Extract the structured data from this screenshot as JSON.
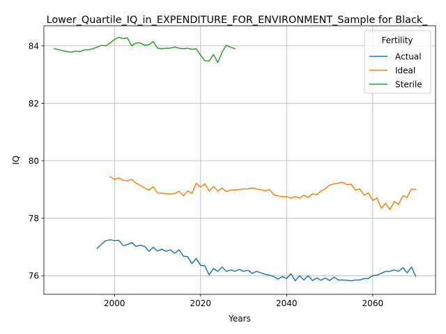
{
  "chart_data": {
    "type": "line",
    "title": "Lower_Quartile_IQ_in_EXPENDITURE_FOR_ENVIRONMENT_Sample for Black_",
    "xlabel": "Years",
    "ylabel": "IQ",
    "xlim": [
      1983.6,
      2074.6
    ],
    "ylim": [
      75.35,
      84.7
    ],
    "xticks": [
      2000,
      2020,
      2040,
      2060
    ],
    "yticks": [
      76,
      78,
      80,
      82,
      84
    ],
    "grid": true,
    "legend": {
      "title": "Fertility",
      "position": "top-right"
    },
    "series": [
      {
        "name": "Actual",
        "color": "#1f77b4",
        "x": [
          1996,
          1997,
          1998,
          1999,
          2000,
          2001,
          2002,
          2003,
          2004,
          2005,
          2006,
          2007,
          2008,
          2009,
          2010,
          2011,
          2012,
          2013,
          2014,
          2015,
          2016,
          2017,
          2018,
          2019,
          2020,
          2021,
          2022,
          2023,
          2024,
          2025,
          2026,
          2027,
          2028,
          2029,
          2030,
          2031,
          2032,
          2033,
          2034,
          2035,
          2036,
          2037,
          2038,
          2039,
          2040,
          2041,
          2042,
          2043,
          2044,
          2045,
          2046,
          2047,
          2048,
          2049,
          2050,
          2051,
          2052,
          2053,
          2054,
          2055,
          2056,
          2057,
          2058,
          2059,
          2060,
          2061,
          2062,
          2063,
          2064,
          2065,
          2066,
          2067,
          2068,
          2069,
          2070
        ],
        "y": [
          76.95,
          77.1,
          77.22,
          77.25,
          77.22,
          77.23,
          77.05,
          77.08,
          77.15,
          77.02,
          77.06,
          77.02,
          76.85,
          76.99,
          76.86,
          76.92,
          76.85,
          76.9,
          76.78,
          76.9,
          76.68,
          76.66,
          76.42,
          76.6,
          76.36,
          76.34,
          76.03,
          76.25,
          76.15,
          76.3,
          76.15,
          76.2,
          76.15,
          76.22,
          76.15,
          76.19,
          76.08,
          76.15,
          76.1,
          76.05,
          76.02,
          75.97,
          75.88,
          75.97,
          75.9,
          76.07,
          75.82,
          76.0,
          75.85,
          76.0,
          75.83,
          75.92,
          75.84,
          75.92,
          75.83,
          75.95,
          75.85,
          75.85,
          75.84,
          75.82,
          75.85,
          75.85,
          75.9,
          75.9,
          76.0,
          76.02,
          76.08,
          76.15,
          76.15,
          76.2,
          76.15,
          76.28,
          76.1,
          76.3,
          75.98
        ]
      },
      {
        "name": "Ideal",
        "color": "#ff7f0e",
        "x": [
          1999,
          2000,
          2001,
          2002,
          2003,
          2004,
          2005,
          2006,
          2007,
          2008,
          2009,
          2010,
          2011,
          2012,
          2013,
          2014,
          2015,
          2016,
          2017,
          2018,
          2019,
          2020,
          2021,
          2022,
          2023,
          2024,
          2025,
          2026,
          2027,
          2028,
          2029,
          2030,
          2031,
          2032,
          2033,
          2034,
          2035,
          2036,
          2037,
          2038,
          2039,
          2040,
          2041,
          2042,
          2043,
          2044,
          2045,
          2046,
          2047,
          2048,
          2049,
          2050,
          2051,
          2052,
          2053,
          2054,
          2055,
          2056,
          2057,
          2058,
          2059,
          2060,
          2061,
          2062,
          2063,
          2064,
          2065,
          2066,
          2067,
          2068,
          2069,
          2070
        ],
        "y": [
          79.45,
          79.35,
          79.4,
          79.32,
          79.3,
          79.35,
          79.22,
          79.15,
          79.05,
          78.98,
          79.1,
          78.88,
          78.87,
          78.85,
          78.84,
          78.86,
          78.94,
          78.78,
          78.95,
          78.86,
          79.22,
          79.08,
          79.2,
          78.95,
          79.1,
          78.95,
          79.05,
          78.93,
          78.98,
          78.98,
          79.0,
          79.02,
          79.02,
          79.05,
          79.02,
          79.0,
          78.95,
          79.0,
          78.82,
          78.78,
          78.75,
          78.75,
          78.7,
          78.75,
          78.7,
          78.8,
          78.72,
          78.85,
          78.82,
          78.95,
          79.02,
          79.15,
          79.2,
          79.22,
          79.25,
          79.17,
          79.18,
          78.98,
          79.02,
          78.8,
          78.88,
          78.62,
          78.7,
          78.35,
          78.52,
          78.3,
          78.58,
          78.48,
          78.78,
          78.73,
          79.02,
          79.0
        ]
      },
      {
        "name": "Sterile",
        "color": "#2ca02c",
        "x": [
          1986,
          1987,
          1988,
          1989,
          1990,
          1991,
          1992,
          1993,
          1994,
          1995,
          1996,
          1997,
          1998,
          1999,
          2000,
          2001,
          2002,
          2003,
          2004,
          2005,
          2006,
          2007,
          2008,
          2009,
          2010,
          2011,
          2012,
          2013,
          2014,
          2015,
          2016,
          2017,
          2018,
          2019,
          2020,
          2021,
          2022,
          2023,
          2024,
          2025,
          2026,
          2027,
          2028
        ],
        "y": [
          83.9,
          83.87,
          83.83,
          83.8,
          83.78,
          83.82,
          83.8,
          83.86,
          83.86,
          83.9,
          83.96,
          84.02,
          84.0,
          84.1,
          84.22,
          84.3,
          84.25,
          84.28,
          84.0,
          84.1,
          84.1,
          84.02,
          84.04,
          84.15,
          83.92,
          83.9,
          83.92,
          83.92,
          83.96,
          83.92,
          83.9,
          83.92,
          83.88,
          83.9,
          83.68,
          83.48,
          83.47,
          83.7,
          83.42,
          83.78,
          84.02,
          83.95,
          83.9
        ]
      }
    ]
  }
}
